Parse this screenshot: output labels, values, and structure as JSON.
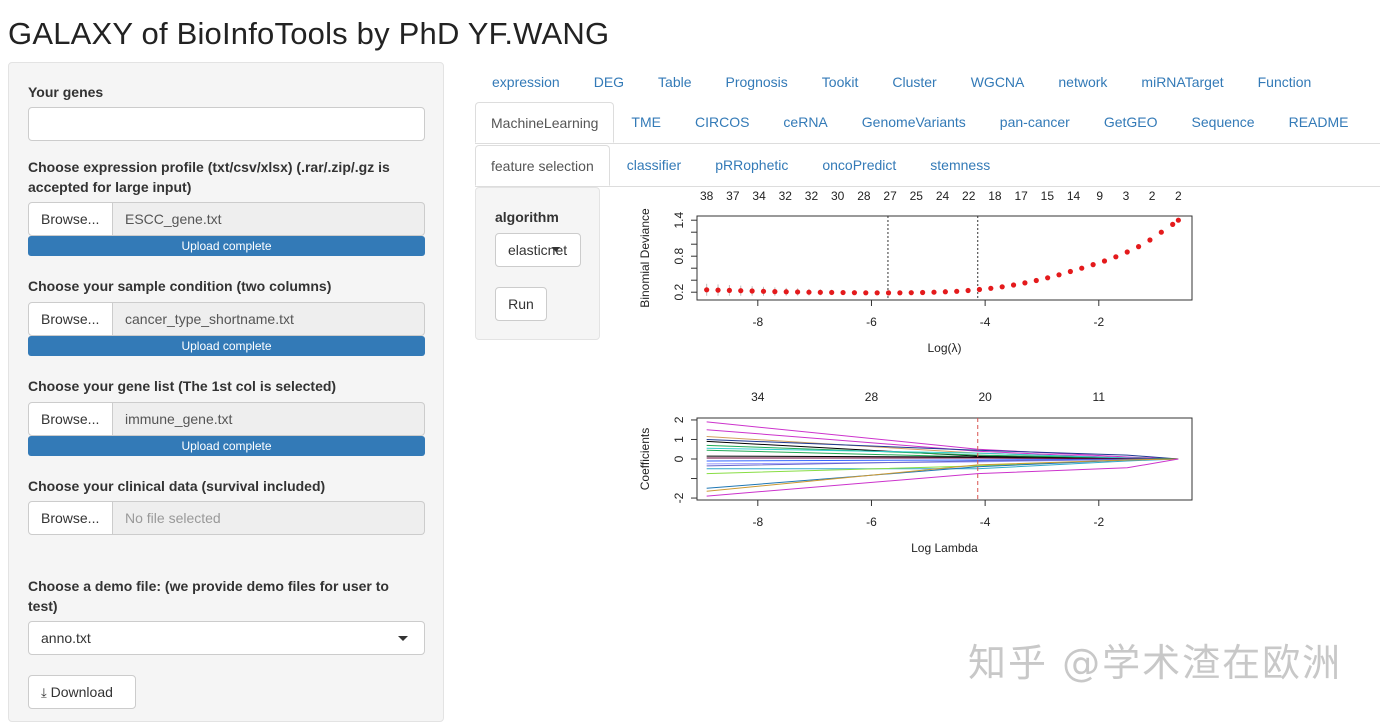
{
  "app_title": "GALAXY of BioInfoTools by PhD YF.WANG",
  "sidebar": {
    "genes_label": "Your genes",
    "genes_value": "",
    "expr_label": "Choose expression profile (txt/csv/xlsx) (.rar/.zip/.gz is accepted for large input)",
    "expr_file": "ESCC_gene.txt",
    "expr_status": "Upload complete",
    "cond_label": "Choose your sample condition (two columns)",
    "cond_file": "cancer_type_shortname.txt",
    "cond_status": "Upload complete",
    "genelist_label": "Choose your gene list (The 1st col is selected)",
    "genelist_file": "immune_gene.txt",
    "genelist_status": "Upload complete",
    "clin_label": "Choose your clinical data (survival included)",
    "clin_file": "No file selected",
    "browse_label": "Browse...",
    "demo_label": "Choose a demo file: (we provide demo files for user to test)",
    "demo_value": "anno.txt",
    "download_label": "Download"
  },
  "tabs_row1": [
    "expression",
    "DEG",
    "Table",
    "Prognosis",
    "Tookit",
    "Cluster",
    "WGCNA",
    "network",
    "miRNATarget",
    "Function"
  ],
  "tabs_row2": [
    "MachineLearning",
    "TME",
    "CIRCOS",
    "ceRNA",
    "GenomeVariants",
    "pan-cancer",
    "GetGEO",
    "Sequence",
    "README"
  ],
  "tabs_row3": [
    "feature selection",
    "classifier",
    "pRRophetic",
    "oncoPredict",
    "stemness"
  ],
  "panel": {
    "algorithm_label": "algorithm",
    "algorithm_value": "elasticnet",
    "run_label": "Run"
  },
  "watermark": "知乎 @学术渣在欧洲",
  "chart_data": [
    {
      "type": "scatter",
      "xlabel": "Log(λ)",
      "ylabel": "Binomial Deviance",
      "xlim": [
        -9.07,
        -0.36
      ],
      "ylim": [
        0.07,
        1.47
      ],
      "xticks": [
        -8,
        -6,
        -4,
        -2
      ],
      "yticks": [
        0.2,
        0.4,
        0.6,
        0.8,
        1.0,
        1.2,
        1.4
      ],
      "ytick_labels": [
        "0.2",
        "",
        "",
        "0.8",
        "",
        "",
        "1.4"
      ],
      "top_labels": [
        "38",
        "37",
        "34",
        "32",
        "32",
        "30",
        "28",
        "27",
        "25",
        "24",
        "22",
        "18",
        "17",
        "15",
        "14",
        "9",
        "3",
        "2",
        "2"
      ],
      "top_range": [
        -8.9,
        -0.6
      ],
      "vlines": [
        -5.71,
        -4.13
      ],
      "point_color": "#e41a1c",
      "x": [
        -8.9,
        -8.7,
        -8.5,
        -8.3,
        -8.1,
        -7.9,
        -7.7,
        -7.5,
        -7.3,
        -7.1,
        -6.9,
        -6.7,
        -6.5,
        -6.3,
        -6.1,
        -5.9,
        -5.7,
        -5.5,
        -5.3,
        -5.1,
        -4.9,
        -4.7,
        -4.5,
        -4.3,
        -4.1,
        -3.9,
        -3.7,
        -3.5,
        -3.3,
        -3.1,
        -2.9,
        -2.7,
        -2.5,
        -2.3,
        -2.1,
        -1.9,
        -1.7,
        -1.5,
        -1.3,
        -1.1,
        -0.9,
        -0.7,
        -0.6
      ],
      "y": [
        0.24,
        0.235,
        0.23,
        0.225,
        0.22,
        0.215,
        0.21,
        0.207,
        0.204,
        0.2,
        0.198,
        0.196,
        0.194,
        0.192,
        0.19,
        0.19,
        0.189,
        0.19,
        0.192,
        0.195,
        0.2,
        0.207,
        0.215,
        0.228,
        0.245,
        0.265,
        0.29,
        0.32,
        0.355,
        0.395,
        0.44,
        0.49,
        0.545,
        0.6,
        0.66,
        0.72,
        0.79,
        0.87,
        0.96,
        1.07,
        1.2,
        1.33,
        1.4
      ],
      "err": [
        0.1,
        0.095,
        0.09,
        0.085,
        0.08,
        0.075,
        0.07,
        0.065,
        0.06,
        0.055,
        0.05,
        0.045,
        0.04,
        0.035,
        0.03,
        0.03,
        0.03,
        0.03,
        0.03,
        0.03,
        0.03,
        0.03,
        0.03,
        0.03,
        0.03,
        0.03,
        0.03,
        0.03,
        0.03,
        0.03,
        0.03,
        0.03,
        0.03,
        0.03,
        0.03,
        0.03,
        0.03,
        0.03,
        0.03,
        0.03,
        0.03,
        0.03,
        0.03
      ]
    },
    {
      "type": "line",
      "xlabel": "Log Lambda",
      "ylabel": "Coefficients",
      "xlim": [
        -9.07,
        -0.36
      ],
      "ylim": [
        -2.1,
        2.1
      ],
      "xticks": [
        -8,
        -6,
        -4,
        -2
      ],
      "yticks": [
        -2,
        -1,
        0,
        1,
        2
      ],
      "ytick_labels": [
        "-2",
        "",
        "0",
        "1",
        "2"
      ],
      "top_labels": [
        "34",
        "28",
        "20",
        "11"
      ],
      "top_positions": [
        -8,
        -6,
        -4,
        -2
      ],
      "vline": -4.13,
      "vline_color": "#d9534f",
      "x": [
        -8.9,
        -4.13,
        -1.5,
        -0.6
      ],
      "series": [
        {
          "color": "#cc33cc",
          "values": [
            1.9,
            0.5,
            0.1,
            0
          ]
        },
        {
          "color": "#cc33cc",
          "values": [
            1.5,
            0.4,
            0.05,
            0
          ]
        },
        {
          "color": "#d4a060",
          "values": [
            1.15,
            0.3,
            0.05,
            0
          ]
        },
        {
          "color": "#1f3a93",
          "values": [
            1.0,
            0.45,
            0.2,
            0
          ]
        },
        {
          "color": "#000000",
          "values": [
            0.9,
            0.15,
            0.05,
            0
          ]
        },
        {
          "color": "#22aa55",
          "values": [
            0.7,
            0.2,
            0.05,
            0
          ]
        },
        {
          "color": "#33cccc",
          "values": [
            0.55,
            0.3,
            0.05,
            0
          ]
        },
        {
          "color": "#22aa55",
          "values": [
            0.45,
            0.1,
            0.02,
            0
          ]
        },
        {
          "color": "#000000",
          "values": [
            0.15,
            0.1,
            0.02,
            0
          ]
        },
        {
          "color": "#660033",
          "values": [
            0.05,
            0.05,
            0.01,
            0
          ]
        },
        {
          "color": "#3366ff",
          "values": [
            -0.1,
            -0.05,
            -0.01,
            0
          ]
        },
        {
          "color": "#9999ff",
          "values": [
            -0.25,
            -0.15,
            -0.02,
            0
          ]
        },
        {
          "color": "#6666cc",
          "values": [
            -0.35,
            -0.1,
            -0.02,
            0
          ]
        },
        {
          "color": "#33aacc",
          "values": [
            -0.5,
            -0.5,
            -0.1,
            0
          ]
        },
        {
          "color": "#88dd44",
          "values": [
            -0.75,
            -0.35,
            -0.05,
            0
          ]
        },
        {
          "color": "#1f77b4",
          "values": [
            -1.5,
            -0.4,
            -0.05,
            0
          ]
        },
        {
          "color": "#cc9933",
          "values": [
            -1.65,
            -0.3,
            -0.05,
            0
          ]
        },
        {
          "color": "#cc33cc",
          "values": [
            -1.9,
            -0.75,
            -0.45,
            0
          ]
        }
      ]
    }
  ]
}
